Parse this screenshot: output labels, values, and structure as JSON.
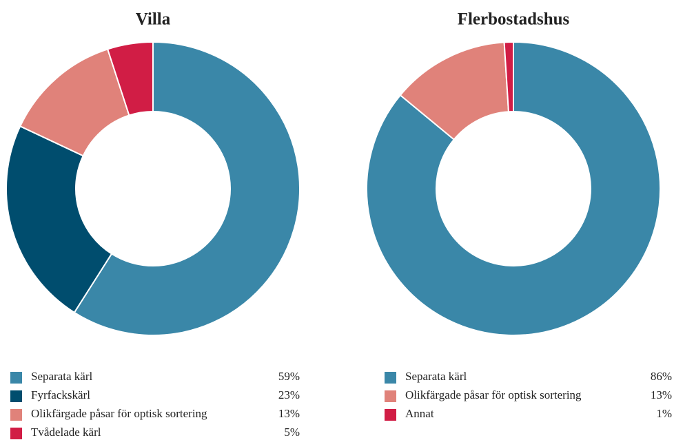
{
  "chart_data": [
    {
      "type": "donut",
      "title": "Villa",
      "categories": [
        "Separata kärl",
        "Fyrfackskärl",
        "Olikfärgade påsar för optisk sortering",
        "Tvådelade kärl"
      ],
      "values": [
        59,
        23,
        13,
        5
      ],
      "value_labels": [
        "59%",
        "23%",
        "13%",
        "5%"
      ],
      "colors": [
        "#3a87a8",
        "#004d6e",
        "#e0827a",
        "#d11d45"
      ]
    },
    {
      "type": "donut",
      "title": "Flerbostadshus",
      "categories": [
        "Separata kärl",
        "Olikfärgade påsar för optisk sortering",
        "Annat"
      ],
      "values": [
        86,
        13,
        1
      ],
      "value_labels": [
        "86%",
        "13%",
        "1%"
      ],
      "colors": [
        "#3a87a8",
        "#e0827a",
        "#d11d45"
      ]
    }
  ]
}
